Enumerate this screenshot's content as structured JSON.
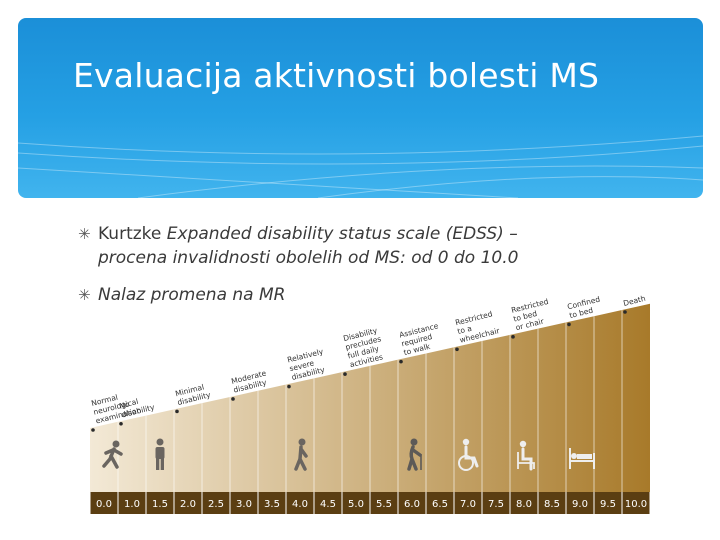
{
  "slide": {
    "title": "Evaluacija aktivnosti bolesti MS",
    "bullets": [
      {
        "line1_normal": "Kurtzke ",
        "line1_italic": "Expanded disability status scale (EDSS) –",
        "line2": "procena invalidnosti obolelih od MS: od 0 do 10.0"
      },
      {
        "text": "Nalaz promena na MR"
      }
    ]
  },
  "edss": {
    "scale_labels": [
      "0.0",
      "1.0",
      "1.5",
      "2.0",
      "2.5",
      "3.0",
      "3.5",
      "4.0",
      "4.5",
      "5.0",
      "5.5",
      "6.0",
      "6.5",
      "7.0",
      "7.5",
      "8.0",
      "8.5",
      "9.0",
      "9.5",
      "10.0"
    ],
    "milestones": [
      {
        "step": 0,
        "lines": [
          "Normal",
          "neurological",
          "examination"
        ]
      },
      {
        "step": 1,
        "lines": [
          "No",
          "disability"
        ]
      },
      {
        "step": 3,
        "lines": [
          "Minimal",
          "disability"
        ]
      },
      {
        "step": 5,
        "lines": [
          "Moderate",
          "disability"
        ]
      },
      {
        "step": 7,
        "lines": [
          "Relatively",
          "severe",
          "disability"
        ]
      },
      {
        "step": 9,
        "lines": [
          "Disability",
          "precludes",
          "full daily",
          "activities"
        ]
      },
      {
        "step": 11,
        "lines": [
          "Assistance",
          "required",
          "to walk"
        ]
      },
      {
        "step": 13,
        "lines": [
          "Restricted",
          "to a",
          "wheelchair"
        ]
      },
      {
        "step": 15,
        "lines": [
          "Restricted",
          "to bed",
          "or chair"
        ]
      },
      {
        "step": 17,
        "lines": [
          "Confined",
          "to bed"
        ]
      },
      {
        "step": 19,
        "lines": [
          "Death"
        ]
      }
    ],
    "icons": [
      {
        "step": 0,
        "name": "runner-icon"
      },
      {
        "step": 2,
        "name": "standing-person-icon"
      },
      {
        "step": 7,
        "name": "walking-person-icon"
      },
      {
        "step": 11,
        "name": "person-with-cane-icon"
      },
      {
        "step": 13,
        "name": "wheelchair-icon"
      },
      {
        "step": 15,
        "name": "person-in-chair-icon"
      },
      {
        "step": 17,
        "name": "bed-icon"
      }
    ],
    "colors": {
      "light": "#f3e9d6",
      "dark": "#a87a2a",
      "bar": "#5b3e12"
    }
  }
}
